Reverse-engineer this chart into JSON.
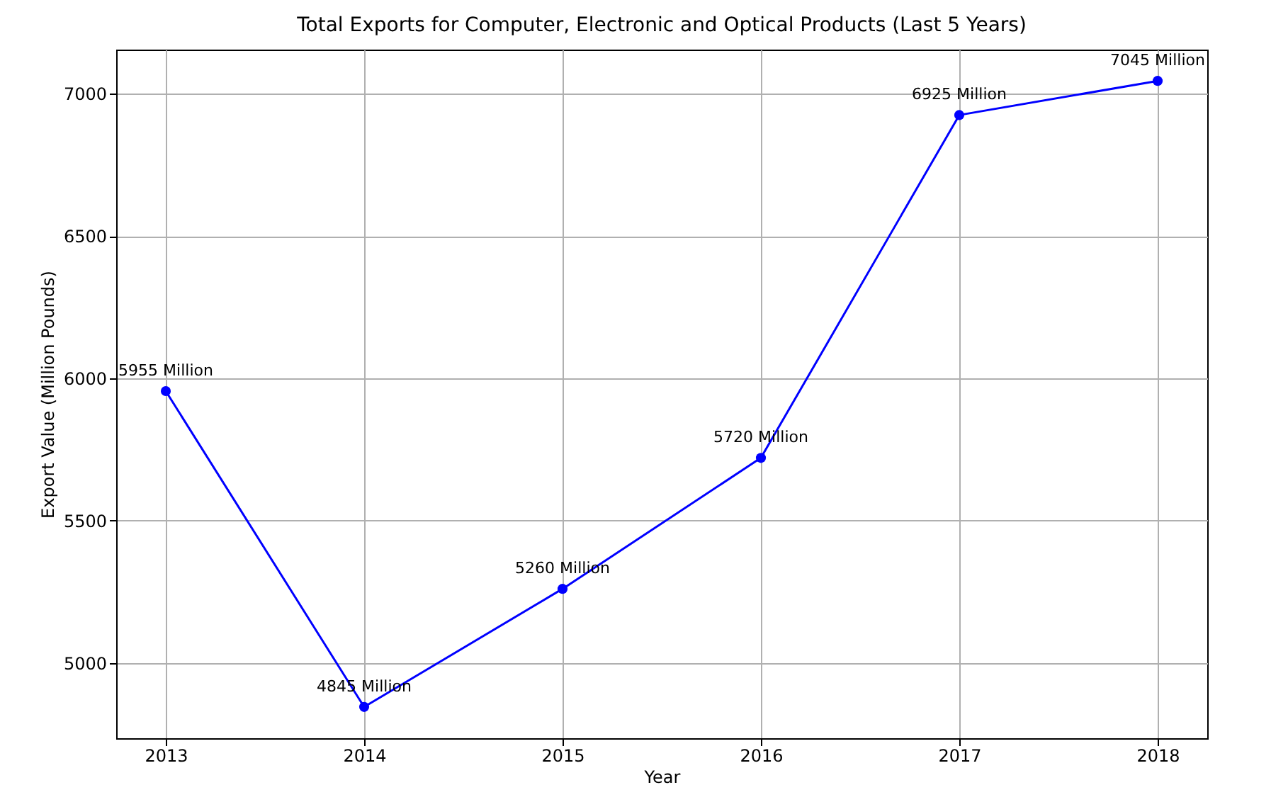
{
  "chart_data": {
    "type": "line",
    "title": "Total Exports for Computer, Electronic and Optical Products (Last 5 Years)",
    "xlabel": "Year",
    "ylabel": "Export Value (Million Pounds)",
    "x": [
      2013,
      2014,
      2015,
      2016,
      2017,
      2018
    ],
    "series": [
      {
        "color": "#0000ff",
        "values": [
          5955,
          4845,
          5260,
          5720,
          6925,
          7045
        ],
        "value_labels": [
          "5955 Million",
          "4845 Million",
          "5260 Million",
          "5720 Million",
          "6925 Million",
          "7045 Million"
        ]
      }
    ],
    "xlim": [
      2012.75,
      2018.25
    ],
    "xticks": [
      2013,
      2014,
      2015,
      2016,
      2017,
      2018
    ],
    "ylim": [
      4735,
      7155
    ],
    "yticks": [
      5000,
      5500,
      6000,
      6500,
      7000
    ],
    "grid": true,
    "marker": "circle",
    "line_style": "solid"
  }
}
